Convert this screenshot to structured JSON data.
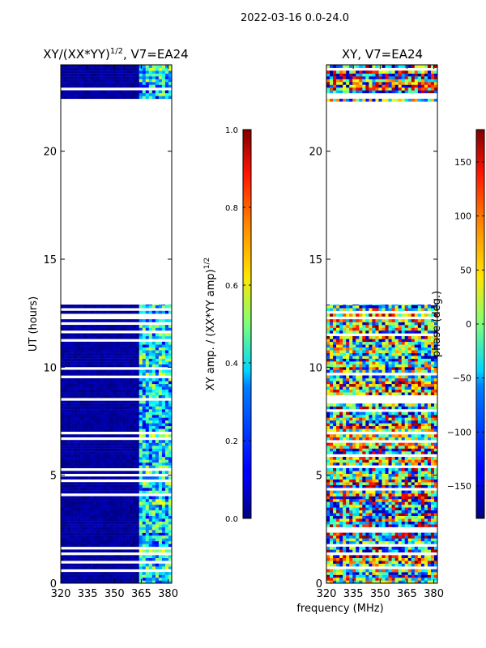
{
  "figure": {
    "title": "2022-03-16 0.0-24.0"
  },
  "chart_data": [
    {
      "type": "heatmap",
      "name": "amplitude-panel",
      "title": "XY/(XX*YY)",
      "title_sup": "1/2",
      "title_suffix": ", V7=EA24",
      "xlabel": "",
      "ylabel": "UT (hours)",
      "xlim": [
        320,
        382
      ],
      "ylim": [
        0,
        24
      ],
      "xticks": [
        320,
        335,
        350,
        365,
        380
      ],
      "yticks": [
        0,
        5,
        10,
        15,
        20
      ],
      "colorbar": {
        "label_main": "XY amp. / (XX*YY amp)",
        "label_sup": "1/2",
        "range": [
          0.0,
          1.0
        ],
        "ticks": [
          "0.0",
          "0.2",
          "0.4",
          "0.6",
          "0.8",
          "1.0"
        ],
        "tick_values": [
          0.0,
          0.2,
          0.4,
          0.6,
          0.8,
          1.0
        ]
      },
      "data_coverage_hours": [
        [
          0.0,
          12.9
        ],
        [
          22.3,
          24.0
        ]
      ],
      "high_amplitude_band_mhz": [
        362,
        380
      ],
      "typical_value_low_band": 0.0,
      "typical_value_high_band": 0.35
    },
    {
      "type": "heatmap",
      "name": "phase-panel",
      "title": "XY, V7=EA24",
      "xlabel": "frequency (MHz)",
      "ylabel": "",
      "xlim": [
        320,
        382
      ],
      "ylim": [
        0,
        24
      ],
      "xticks": [
        320,
        335,
        350,
        365,
        380
      ],
      "yticks": [
        0,
        5,
        10,
        15,
        20
      ],
      "colorbar": {
        "label": "phase (deg.)",
        "range": [
          -180,
          180
        ],
        "ticks": [
          "−150",
          "−100",
          "−50",
          "0",
          "50",
          "100",
          "150"
        ],
        "tick_values": [
          -150,
          -100,
          -50,
          0,
          50,
          100,
          150
        ]
      },
      "data_coverage_hours": [
        [
          0.0,
          12.9
        ],
        [
          22.3,
          24.0
        ]
      ]
    }
  ]
}
